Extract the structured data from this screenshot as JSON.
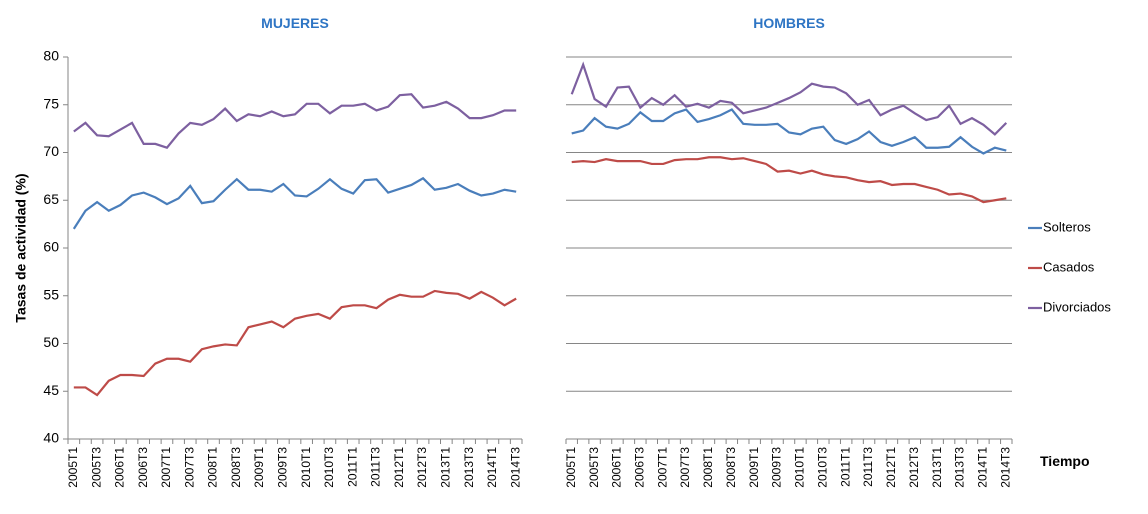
{
  "chart_data": [
    {
      "type": "line",
      "title": "MUJERES",
      "y_label": "Tasas de actividad (%)",
      "categories": [
        "2005T1",
        null,
        "2005T3",
        null,
        "2006T1",
        null,
        "2006T3",
        null,
        "2007T1",
        null,
        "2007T3",
        null,
        "2008T1",
        null,
        "2008T3",
        null,
        "2009T1",
        null,
        "2009T3",
        null,
        "2010T1",
        null,
        "2010T3",
        null,
        "2011T1",
        null,
        "2011T3",
        null,
        "2012T1",
        null,
        "2012T3",
        null,
        "2013T1",
        null,
        "2013T3",
        null,
        "2014T1",
        null,
        "2014T3"
      ],
      "ylim": [
        40,
        80
      ],
      "yticks": [
        40,
        45,
        50,
        55,
        60,
        65,
        70,
        75,
        80
      ],
      "grid": false,
      "series": [
        {
          "name": "Solteros",
          "color": "#4a7ebb",
          "values": [
            62.0,
            63.9,
            64.8,
            63.9,
            64.5,
            65.5,
            65.8,
            65.3,
            64.6,
            65.2,
            66.5,
            64.7,
            64.9,
            66.1,
            67.2,
            66.1,
            66.1,
            65.9,
            66.7,
            65.5,
            65.4,
            66.2,
            67.2,
            66.2,
            65.7,
            67.1,
            67.2,
            65.8,
            66.2,
            66.6,
            67.3,
            66.1,
            66.3,
            66.7,
            66.0,
            65.5,
            65.7,
            66.1,
            65.9
          ]
        },
        {
          "name": "Casados",
          "color": "#be4b48",
          "values": [
            45.4,
            45.4,
            44.6,
            46.1,
            46.7,
            46.7,
            46.6,
            47.9,
            48.4,
            48.4,
            48.1,
            49.4,
            49.7,
            49.9,
            49.8,
            51.7,
            52.0,
            52.3,
            51.7,
            52.6,
            52.9,
            53.1,
            52.6,
            53.8,
            54.0,
            54.0,
            53.7,
            54.6,
            55.1,
            54.9,
            54.9,
            55.5,
            55.3,
            55.2,
            54.7,
            55.4,
            54.8,
            54.0,
            54.7
          ]
        },
        {
          "name": "Divorciados",
          "color": "#7d60a0",
          "values": [
            72.2,
            73.1,
            71.8,
            71.7,
            72.4,
            73.1,
            70.9,
            70.9,
            70.5,
            72.0,
            73.1,
            72.9,
            73.5,
            74.6,
            73.3,
            74.0,
            73.8,
            74.3,
            73.8,
            74.0,
            75.1,
            75.1,
            74.1,
            74.9,
            74.9,
            75.1,
            74.4,
            74.8,
            76.0,
            76.1,
            74.7,
            74.9,
            75.3,
            74.6,
            73.6,
            73.6,
            73.9,
            74.4,
            74.4
          ]
        }
      ]
    },
    {
      "type": "line",
      "title": "HOMBRES",
      "x_label": "Tiempo",
      "categories": [
        "2005T1",
        null,
        "2005T3",
        null,
        "2006T1",
        null,
        "2006T3",
        null,
        "2007T1",
        null,
        "2007T3",
        null,
        "2008T1",
        null,
        "2008T3",
        null,
        "2009T1",
        null,
        "2009T3",
        null,
        "2010T1",
        null,
        "2010T3",
        null,
        "2011T1",
        null,
        "2011T3",
        null,
        "2012T1",
        null,
        "2012T3",
        null,
        "2013T1",
        null,
        "2013T3",
        null,
        "2014T1",
        null,
        "2014T3"
      ],
      "ylim": [
        40,
        80
      ],
      "yticks": [
        40,
        45,
        50,
        55,
        60,
        65,
        70,
        75,
        80
      ],
      "grid": true,
      "series": [
        {
          "color": "#4a7ebb",
          "values": [
            72.0,
            72.3,
            73.6,
            72.7,
            72.5,
            73.0,
            74.2,
            73.3,
            73.3,
            74.1,
            74.5,
            73.2,
            73.5,
            73.9,
            74.5,
            73.0,
            72.9,
            72.9,
            73.0,
            72.1,
            71.9,
            72.5,
            72.7,
            71.3,
            70.9,
            71.4,
            72.2,
            71.1,
            70.7,
            71.1,
            71.6,
            70.5,
            70.5,
            70.6,
            71.6,
            70.6,
            69.9,
            70.5,
            70.2
          ]
        },
        {
          "color": "#be4b48",
          "values": [
            69.0,
            69.1,
            69.0,
            69.3,
            69.1,
            69.1,
            69.1,
            68.8,
            68.8,
            69.2,
            69.3,
            69.3,
            69.5,
            69.5,
            69.3,
            69.4,
            69.1,
            68.8,
            68.0,
            68.1,
            67.8,
            68.1,
            67.7,
            67.5,
            67.4,
            67.1,
            66.9,
            67.0,
            66.6,
            66.7,
            66.7,
            66.4,
            66.1,
            65.6,
            65.7,
            65.4,
            64.8,
            65.0,
            65.2
          ]
        },
        {
          "color": "#7d60a0",
          "values": [
            76.1,
            79.2,
            75.6,
            74.8,
            76.8,
            76.9,
            74.7,
            75.7,
            75.0,
            76.0,
            74.8,
            75.1,
            74.7,
            75.4,
            75.2,
            74.1,
            74.4,
            74.7,
            75.2,
            75.7,
            76.3,
            77.2,
            76.9,
            76.8,
            76.2,
            75.0,
            75.5,
            73.9,
            74.5,
            74.9,
            74.1,
            73.4,
            73.7,
            74.9,
            73.0,
            73.6,
            72.9,
            71.9,
            73.1
          ]
        }
      ]
    }
  ]
}
